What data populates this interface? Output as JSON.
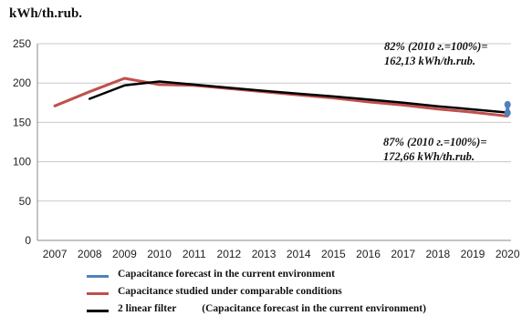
{
  "chart_data": {
    "type": "line",
    "unit_label": "kWh/th.rub.",
    "x": [
      2007,
      2008,
      2009,
      2010,
      2011,
      2012,
      2013,
      2014,
      2015,
      2016,
      2017,
      2018,
      2019,
      2020
    ],
    "ylim": [
      0,
      250
    ],
    "yticks": [
      0,
      50,
      100,
      150,
      200,
      250
    ],
    "grid": true,
    "legend_placement": "bottom",
    "series": [
      {
        "name": "Capacitance forecast in the current environment",
        "color": "#4f81bd",
        "points": [
          [
            2020,
            162.13
          ],
          [
            2020,
            172.66
          ]
        ]
      },
      {
        "name": "Capacitance studied under comparable conditions",
        "color": "#c0504d",
        "points": [
          [
            2007,
            171
          ],
          [
            2008,
            189
          ],
          [
            2009,
            206
          ],
          [
            2010,
            198
          ],
          [
            2011,
            197
          ],
          [
            2012,
            193
          ],
          [
            2013,
            189
          ],
          [
            2014,
            185
          ],
          [
            2015,
            181
          ],
          [
            2016,
            176
          ],
          [
            2017,
            172
          ],
          [
            2018,
            167
          ],
          [
            2019,
            163
          ],
          [
            2020,
            158
          ]
        ]
      },
      {
        "name": "2  linear filter",
        "name_suffix": "(Capacitance forecast in the current environment)",
        "color": "#000000",
        "points": [
          [
            2008,
            180
          ],
          [
            2009,
            197
          ],
          [
            2010,
            202
          ],
          [
            2011,
            198
          ],
          [
            2012,
            194
          ],
          [
            2013,
            190
          ],
          [
            2014,
            186.5
          ],
          [
            2015,
            183
          ],
          [
            2016,
            179
          ],
          [
            2017,
            175
          ],
          [
            2018,
            170.5
          ],
          [
            2019,
            166.5
          ],
          [
            2020,
            162.5
          ]
        ]
      }
    ],
    "annotations": [
      {
        "line1": "82% (2010 г.=100%)=",
        "line2": "162,13 kWh/th.rub."
      },
      {
        "line1": "87% (2010 г.=100%)=",
        "line2": "172,66 kWh/th.rub."
      }
    ]
  }
}
